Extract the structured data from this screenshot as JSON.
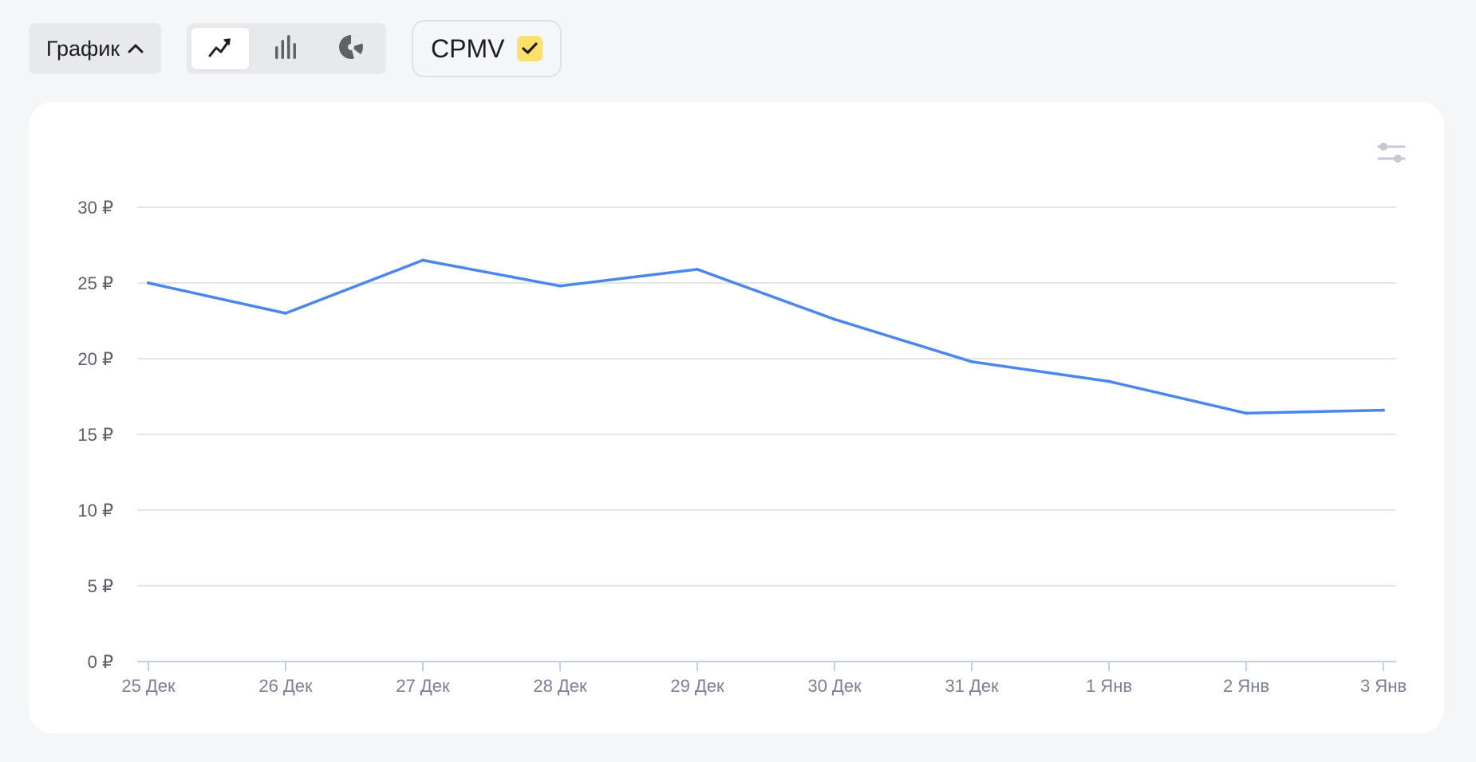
{
  "toolbar": {
    "view_label": "График",
    "chart_types": [
      {
        "name": "line-chart-icon",
        "active": true
      },
      {
        "name": "bar-chart-icon",
        "active": false
      },
      {
        "name": "pie-chart-icon",
        "active": false
      }
    ],
    "metric_label": "CPMV",
    "metric_checked": true
  },
  "colors": {
    "line": "#4a86ec",
    "grid": "#e3e5e9",
    "axis": "#c3d0e6",
    "y_tick_text": "#5a5d66",
    "x_tick_text": "#7a8095",
    "check_bg": "#fddf6b",
    "icon_dark": "#1d1d1f",
    "icon_muted": "#5f6166",
    "settings_icon": "#c4c8d2"
  },
  "chart_data": {
    "type": "line",
    "title": "",
    "xlabel": "",
    "ylabel": "",
    "categories": [
      "25 Дек",
      "26 Дек",
      "27 Дек",
      "28 Дек",
      "29 Дек",
      "30 Дек",
      "31 Дек",
      "1 Янв",
      "2 Янв",
      "3 Янв"
    ],
    "series": [
      {
        "values": [
          25.0,
          23.0,
          26.5,
          24.8,
          25.9,
          22.6,
          19.8,
          18.5,
          16.4,
          16.6
        ]
      }
    ],
    "ylim": [
      0,
      30
    ],
    "yticks": [
      0,
      5,
      10,
      15,
      20,
      25,
      30
    ],
    "ytick_labels": [
      "0 ₽",
      "5 ₽",
      "10 ₽",
      "15 ₽",
      "20 ₽",
      "25 ₽",
      "30 ₽"
    ],
    "grid": true,
    "legend": "none"
  }
}
